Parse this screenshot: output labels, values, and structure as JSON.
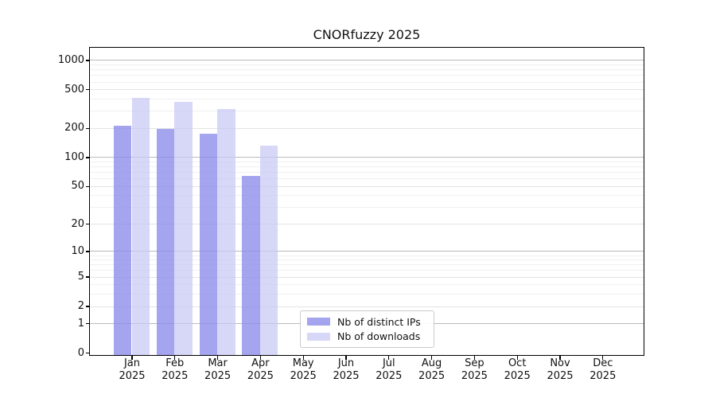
{
  "chart_data": {
    "type": "bar",
    "title": "CNORfuzzy 2025",
    "categories": [
      "Jan",
      "Feb",
      "Mar",
      "Apr",
      "May",
      "Jun",
      "Jul",
      "Aug",
      "Sep",
      "Oct",
      "Nov",
      "Dec"
    ],
    "category_year": "2025",
    "series": [
      {
        "name": "Nb of distinct IPs",
        "color": "#8c8cea",
        "fill": "rgba(140,140,234,0.78)",
        "values": [
          210,
          196,
          175,
          64,
          null,
          null,
          null,
          null,
          null,
          null,
          null,
          null
        ]
      },
      {
        "name": "Nb of downloads",
        "color": "#c7c7f4",
        "fill": "rgba(199,199,244,0.72)",
        "values": [
          408,
          371,
          313,
          132,
          null,
          null,
          null,
          null,
          null,
          null,
          null,
          null
        ]
      }
    ],
    "yscale": "log10(value+1)",
    "yticks": [
      1000,
      500,
      200,
      100,
      50,
      20,
      10,
      5,
      2,
      1,
      0
    ],
    "ylim": [
      0,
      1300
    ],
    "grid": true,
    "legend_position": "inside bottom center",
    "colors": {
      "grid_major": "#bbbbbb",
      "grid_sub": "#e3e3e3",
      "grid_minor": "#f0f0f0",
      "axis": "#000000",
      "text": "#111111",
      "legend_border": "#cccccc"
    }
  }
}
